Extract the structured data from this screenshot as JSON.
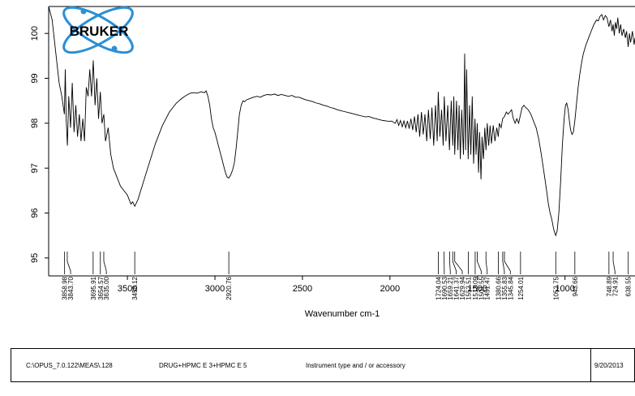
{
  "chart_data": {
    "type": "line",
    "title": "",
    "xlabel": "Wavenumber cm-1",
    "ylabel": "",
    "xlim": [
      3950,
      600
    ],
    "ylim": [
      94.6,
      100.6
    ],
    "x_ticks": [
      3500,
      3000,
      2500,
      2000,
      1500,
      1000
    ],
    "y_ticks": [
      95,
      96,
      97,
      98,
      99,
      100
    ],
    "grid": false,
    "series": [
      {
        "points": [
          [
            3950,
            100.6
          ],
          [
            3930,
            100.3
          ],
          [
            3910,
            99.6
          ],
          [
            3890,
            98.9
          ],
          [
            3875,
            98.6
          ],
          [
            3860,
            98.2
          ],
          [
            3855,
            99.2
          ],
          [
            3850,
            98.1
          ],
          [
            3843,
            97.5
          ],
          [
            3835,
            98.6
          ],
          [
            3825,
            97.9
          ],
          [
            3815,
            98.9
          ],
          [
            3805,
            97.8
          ],
          [
            3795,
            98.4
          ],
          [
            3785,
            97.7
          ],
          [
            3775,
            98.2
          ],
          [
            3765,
            97.6
          ],
          [
            3755,
            98.1
          ],
          [
            3745,
            97.6
          ],
          [
            3735,
            98.8
          ],
          [
            3725,
            98.6
          ],
          [
            3715,
            99.2
          ],
          [
            3705,
            98.6
          ],
          [
            3695,
            99.4
          ],
          [
            3685,
            98.4
          ],
          [
            3675,
            99.0
          ],
          [
            3665,
            98.1
          ],
          [
            3655,
            98.7
          ],
          [
            3645,
            98.0
          ],
          [
            3635,
            98.2
          ],
          [
            3625,
            97.6
          ],
          [
            3610,
            97.9
          ],
          [
            3595,
            97.3
          ],
          [
            3580,
            97.0
          ],
          [
            3560,
            96.8
          ],
          [
            3540,
            96.6
          ],
          [
            3520,
            96.5
          ],
          [
            3500,
            96.4
          ],
          [
            3480,
            96.2
          ],
          [
            3470,
            96.25
          ],
          [
            3458,
            96.15
          ],
          [
            3440,
            96.3
          ],
          [
            3420,
            96.55
          ],
          [
            3400,
            96.8
          ],
          [
            3380,
            97.05
          ],
          [
            3360,
            97.3
          ],
          [
            3340,
            97.55
          ],
          [
            3320,
            97.75
          ],
          [
            3300,
            97.95
          ],
          [
            3280,
            98.1
          ],
          [
            3260,
            98.25
          ],
          [
            3240,
            98.35
          ],
          [
            3220,
            98.45
          ],
          [
            3200,
            98.52
          ],
          [
            3180,
            98.58
          ],
          [
            3160,
            98.63
          ],
          [
            3140,
            98.67
          ],
          [
            3120,
            98.68
          ],
          [
            3100,
            98.67
          ],
          [
            3080,
            98.7
          ],
          [
            3060,
            98.68
          ],
          [
            3050,
            98.72
          ],
          [
            3040,
            98.6
          ],
          [
            3030,
            98.4
          ],
          [
            3020,
            98.1
          ],
          [
            3010,
            97.9
          ],
          [
            3000,
            97.8
          ],
          [
            2990,
            97.65
          ],
          [
            2980,
            97.5
          ],
          [
            2970,
            97.35
          ],
          [
            2960,
            97.2
          ],
          [
            2950,
            97.05
          ],
          [
            2940,
            96.9
          ],
          [
            2930,
            96.8
          ],
          [
            2921,
            96.78
          ],
          [
            2910,
            96.85
          ],
          [
            2900,
            96.95
          ],
          [
            2890,
            97.1
          ],
          [
            2880,
            97.4
          ],
          [
            2870,
            97.8
          ],
          [
            2860,
            98.2
          ],
          [
            2850,
            98.4
          ],
          [
            2840,
            98.5
          ],
          [
            2830,
            98.48
          ],
          [
            2820,
            98.52
          ],
          [
            2800,
            98.55
          ],
          [
            2780,
            98.58
          ],
          [
            2760,
            98.6
          ],
          [
            2740,
            98.58
          ],
          [
            2720,
            98.62
          ],
          [
            2700,
            98.64
          ],
          [
            2680,
            98.63
          ],
          [
            2660,
            98.65
          ],
          [
            2640,
            98.62
          ],
          [
            2620,
            98.64
          ],
          [
            2600,
            98.62
          ],
          [
            2580,
            98.6
          ],
          [
            2560,
            98.62
          ],
          [
            2540,
            98.58
          ],
          [
            2520,
            98.58
          ],
          [
            2500,
            98.55
          ],
          [
            2480,
            98.52
          ],
          [
            2460,
            98.5
          ],
          [
            2440,
            98.48
          ],
          [
            2420,
            98.45
          ],
          [
            2400,
            98.43
          ],
          [
            2380,
            98.4
          ],
          [
            2360,
            98.38
          ],
          [
            2340,
            98.35
          ],
          [
            2320,
            98.33
          ],
          [
            2300,
            98.3
          ],
          [
            2280,
            98.28
          ],
          [
            2260,
            98.26
          ],
          [
            2240,
            98.24
          ],
          [
            2220,
            98.22
          ],
          [
            2200,
            98.2
          ],
          [
            2180,
            98.18
          ],
          [
            2160,
            98.16
          ],
          [
            2140,
            98.14
          ],
          [
            2120,
            98.15
          ],
          [
            2100,
            98.12
          ],
          [
            2080,
            98.1
          ],
          [
            2060,
            98.08
          ],
          [
            2040,
            98.06
          ],
          [
            2020,
            98.05
          ],
          [
            2000,
            98.04
          ],
          [
            1990,
            98.05
          ],
          [
            1980,
            98.02
          ],
          [
            1970,
            98.0
          ],
          [
            1960,
            98.08
          ],
          [
            1950,
            97.95
          ],
          [
            1940,
            98.06
          ],
          [
            1930,
            97.92
          ],
          [
            1920,
            98.05
          ],
          [
            1910,
            97.9
          ],
          [
            1900,
            98.05
          ],
          [
            1890,
            97.88
          ],
          [
            1880,
            98.1
          ],
          [
            1870,
            97.85
          ],
          [
            1860,
            98.15
          ],
          [
            1850,
            97.8
          ],
          [
            1840,
            98.2
          ],
          [
            1830,
            97.7
          ],
          [
            1820,
            98.25
          ],
          [
            1810,
            97.75
          ],
          [
            1800,
            98.2
          ],
          [
            1790,
            97.6
          ],
          [
            1780,
            98.3
          ],
          [
            1770,
            97.65
          ],
          [
            1760,
            98.35
          ],
          [
            1750,
            97.5
          ],
          [
            1740,
            98.4
          ],
          [
            1730,
            97.6
          ],
          [
            1724,
            98.7
          ],
          [
            1715,
            97.7
          ],
          [
            1705,
            98.3
          ],
          [
            1696,
            97.5
          ],
          [
            1690,
            98.6
          ],
          [
            1680,
            97.6
          ],
          [
            1670,
            98.4
          ],
          [
            1660,
            97.4
          ],
          [
            1650,
            98.5
          ],
          [
            1641,
            97.5
          ],
          [
            1635,
            98.6
          ],
          [
            1630,
            97.3
          ],
          [
            1620,
            98.5
          ],
          [
            1612,
            97.4
          ],
          [
            1605,
            98.4
          ],
          [
            1598,
            97.2
          ],
          [
            1590,
            98.3
          ],
          [
            1580,
            97.3
          ],
          [
            1573,
            99.55
          ],
          [
            1568,
            97.4
          ],
          [
            1562,
            99.2
          ],
          [
            1553,
            97.2
          ],
          [
            1545,
            98.4
          ],
          [
            1538,
            97.3
          ],
          [
            1530,
            98.6
          ],
          [
            1522,
            97.1
          ],
          [
            1514,
            98.1
          ],
          [
            1508,
            97.3
          ],
          [
            1501,
            98.0
          ],
          [
            1494,
            96.9
          ],
          [
            1488,
            97.8
          ],
          [
            1480,
            96.75
          ],
          [
            1474,
            97.7
          ],
          [
            1466,
            97.2
          ],
          [
            1458,
            97.9
          ],
          [
            1451,
            97.4
          ],
          [
            1444,
            98.0
          ],
          [
            1436,
            97.5
          ],
          [
            1428,
            97.95
          ],
          [
            1420,
            97.55
          ],
          [
            1410,
            97.95
          ],
          [
            1400,
            97.6
          ],
          [
            1390,
            97.9
          ],
          [
            1381,
            97.7
          ],
          [
            1375,
            98.0
          ],
          [
            1365,
            97.9
          ],
          [
            1356,
            98.1
          ],
          [
            1346,
            98.15
          ],
          [
            1335,
            98.25
          ],
          [
            1325,
            98.2
          ],
          [
            1315,
            98.25
          ],
          [
            1305,
            98.3
          ],
          [
            1295,
            98.1
          ],
          [
            1285,
            98.0
          ],
          [
            1275,
            98.1
          ],
          [
            1265,
            98.0
          ],
          [
            1254,
            98.2
          ],
          [
            1245,
            98.35
          ],
          [
            1235,
            98.4
          ],
          [
            1225,
            98.35
          ],
          [
            1210,
            98.3
          ],
          [
            1195,
            98.2
          ],
          [
            1180,
            98.05
          ],
          [
            1165,
            97.9
          ],
          [
            1150,
            97.65
          ],
          [
            1135,
            97.3
          ],
          [
            1120,
            96.9
          ],
          [
            1105,
            96.5
          ],
          [
            1095,
            96.2
          ],
          [
            1085,
            96.0
          ],
          [
            1075,
            95.85
          ],
          [
            1065,
            95.65
          ],
          [
            1058,
            95.55
          ],
          [
            1053,
            95.5
          ],
          [
            1045,
            95.6
          ],
          [
            1035,
            96.0
          ],
          [
            1025,
            96.7
          ],
          [
            1015,
            97.5
          ],
          [
            1005,
            98.1
          ],
          [
            997,
            98.4
          ],
          [
            990,
            98.45
          ],
          [
            982,
            98.3
          ],
          [
            975,
            98.05
          ],
          [
            968,
            97.85
          ],
          [
            960,
            97.75
          ],
          [
            952,
            97.8
          ],
          [
            944,
            98.05
          ],
          [
            935,
            98.4
          ],
          [
            925,
            98.8
          ],
          [
            915,
            99.1
          ],
          [
            905,
            99.35
          ],
          [
            895,
            99.55
          ],
          [
            880,
            99.75
          ],
          [
            865,
            99.9
          ],
          [
            850,
            100.05
          ],
          [
            835,
            100.2
          ],
          [
            820,
            100.3
          ],
          [
            810,
            100.28
          ],
          [
            800,
            100.38
          ],
          [
            790,
            100.42
          ],
          [
            780,
            100.3
          ],
          [
            770,
            100.4
          ],
          [
            760,
            100.35
          ],
          [
            749,
            100.15
          ],
          [
            740,
            100.3
          ],
          [
            731,
            100.05
          ],
          [
            725,
            100.2
          ],
          [
            718,
            99.95
          ],
          [
            712,
            100.25
          ],
          [
            705,
            100.1
          ],
          [
            698,
            100.35
          ],
          [
            690,
            100.0
          ],
          [
            682,
            100.2
          ],
          [
            674,
            99.95
          ],
          [
            665,
            100.1
          ],
          [
            655,
            99.9
          ],
          [
            648,
            100.05
          ],
          [
            639,
            99.7
          ],
          [
            632,
            100.0
          ],
          [
            625,
            99.8
          ],
          [
            615,
            100.05
          ],
          [
            605,
            99.75
          ],
          [
            600,
            99.9
          ]
        ]
      }
    ],
    "peak_labels": [
      "3858.98",
      "3843.70",
      "3695.91",
      "3654.57",
      "3635.00",
      "3458.12",
      "2920.76",
      "1724.04",
      "1690.53",
      "1659.21",
      "1641.37",
      "1629.94",
      "1552.51",
      "1513.09",
      "1501.55",
      "1451.47",
      "1380.66",
      "1355.83",
      "1345.84",
      "1254.01",
      "1052.75",
      "943.66",
      "748.89",
      "724.91",
      "638.55"
    ],
    "peak_x": [
      3858.98,
      3843.7,
      3695.91,
      3654.57,
      3635.0,
      3458.12,
      2920.76,
      1724.04,
      1690.53,
      1659.21,
      1641.37,
      1629.94,
      1552.51,
      1513.09,
      1501.55,
      1451.47,
      1380.66,
      1355.83,
      1345.84,
      1254.01,
      1052.75,
      943.66,
      748.89,
      724.91,
      638.55
    ]
  },
  "logo": {
    "text": "BRUKER"
  },
  "footer": {
    "path": "C:\\OPUS_7.0.122\\MEAS\\.128",
    "sample": "DRUG+HPMC E 3+HPMC E 5",
    "instrument": "Instrument type and / or accessory",
    "date": "9/20/2013"
  }
}
